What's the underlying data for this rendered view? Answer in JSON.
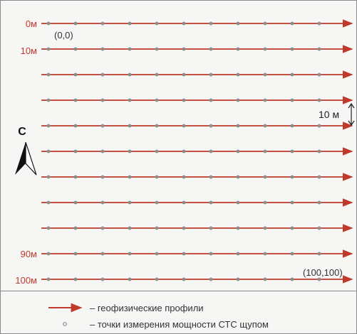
{
  "profile_labels": {
    "first": "0м",
    "second": "10м",
    "ninth": "90м",
    "last": "100м"
  },
  "corner_labels": {
    "start": "(0,0)",
    "end": "(100,100)"
  },
  "spacing_label": "10 м",
  "north_label": "С",
  "legend": {
    "profiles": "– геофизические профили",
    "points": "– точки измерения мощности СТС щупом"
  },
  "colors": {
    "profile": "#c0392b",
    "point": "#8c8c8c"
  }
}
